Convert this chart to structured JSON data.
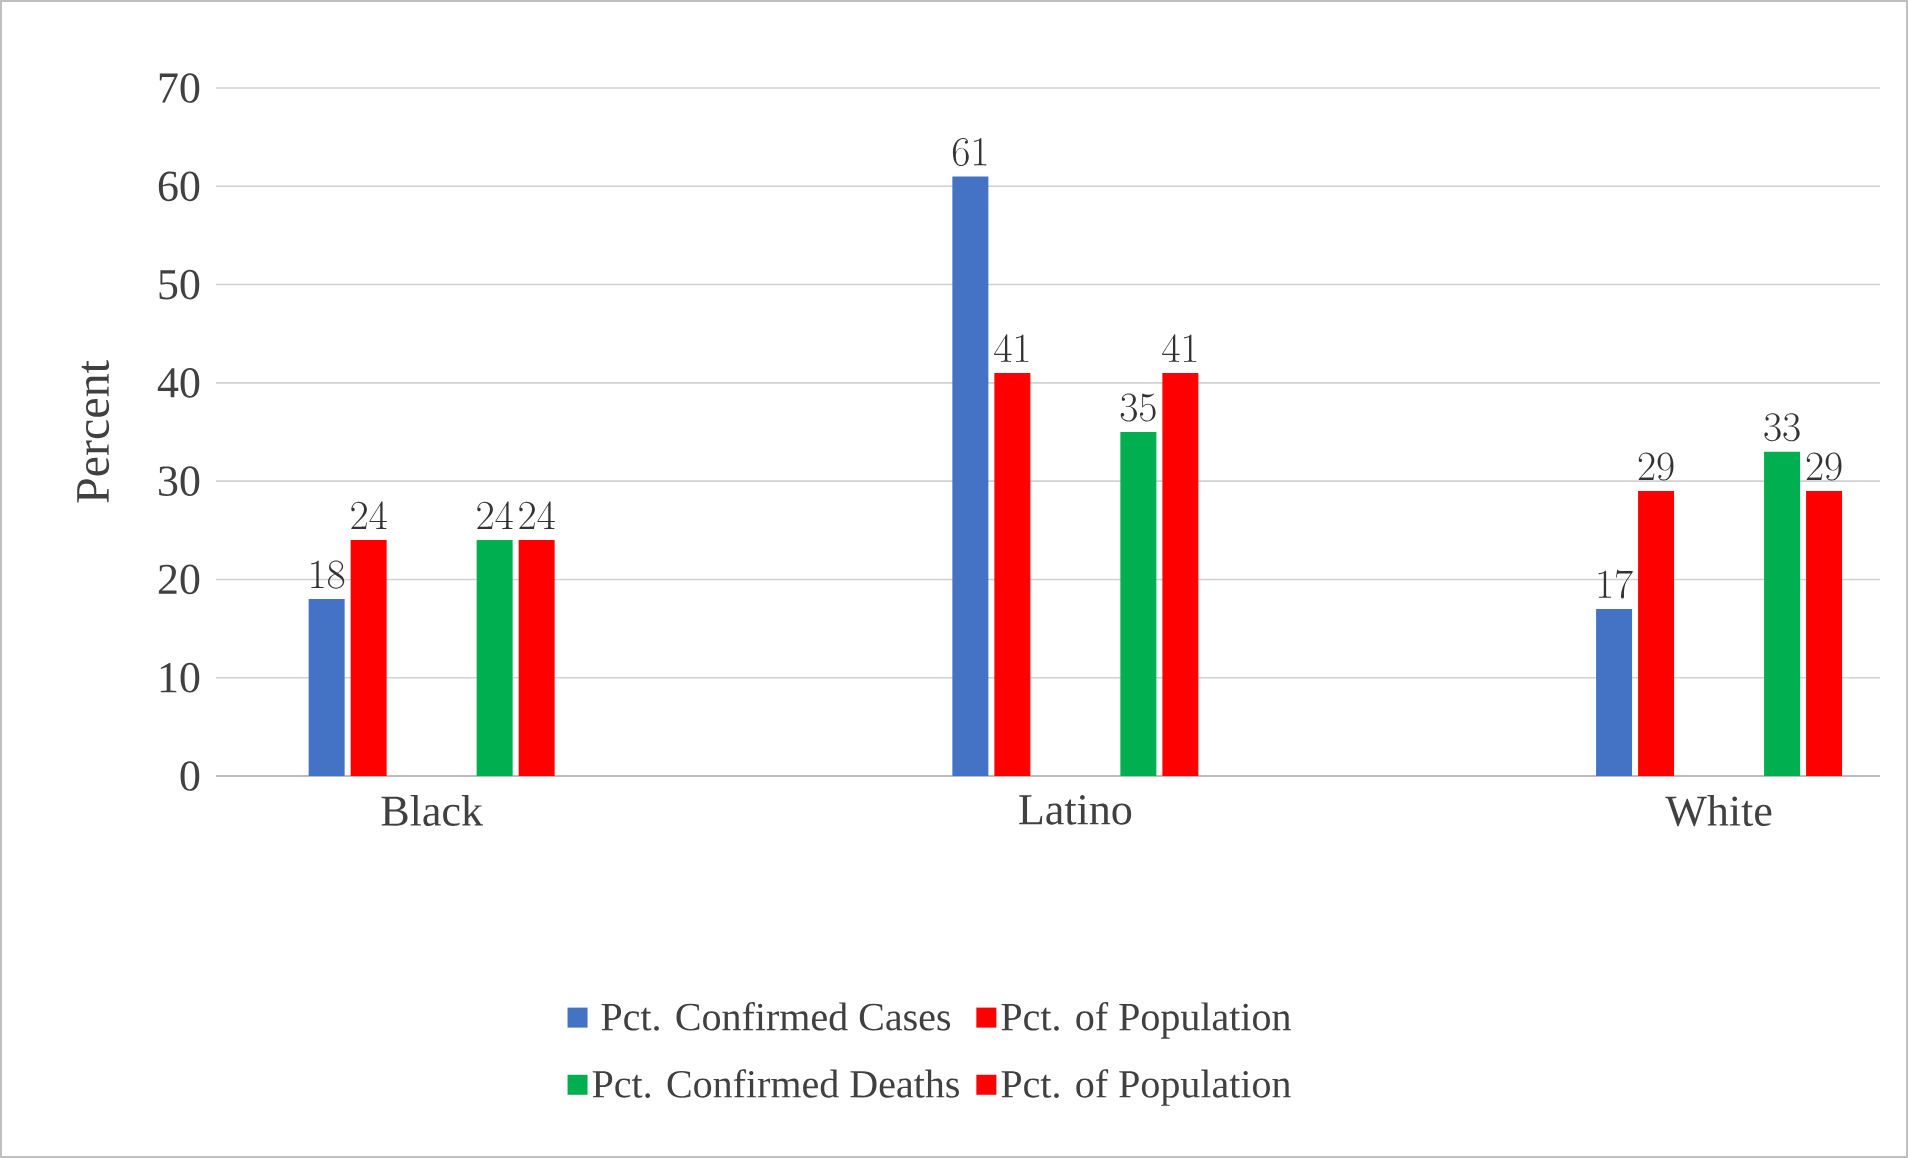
{
  "chart_data": {
    "type": "bar",
    "ylabel": "Percent",
    "categories": [
      "Black",
      "Latino",
      "White"
    ],
    "series": [
      {
        "name": "Pct. Confirmed Cases",
        "color": "#4472c4",
        "values": [
          18,
          61,
          17
        ]
      },
      {
        "name": "Pct. of Population",
        "color": "#ff0000",
        "values": [
          24,
          41,
          29
        ]
      },
      {
        "name": "Pct. Confirmed Deaths",
        "color": "#00b050",
        "values": [
          24,
          35,
          33
        ]
      },
      {
        "name": "Pct. of Population",
        "color": "#ff0000",
        "values": [
          24,
          41,
          29
        ]
      }
    ],
    "ylim": [
      0,
      70
    ],
    "yticks": [
      0,
      10,
      20,
      30,
      40,
      50,
      60,
      70
    ],
    "grid": "y",
    "legend": "bottom",
    "data_labels": true
  }
}
